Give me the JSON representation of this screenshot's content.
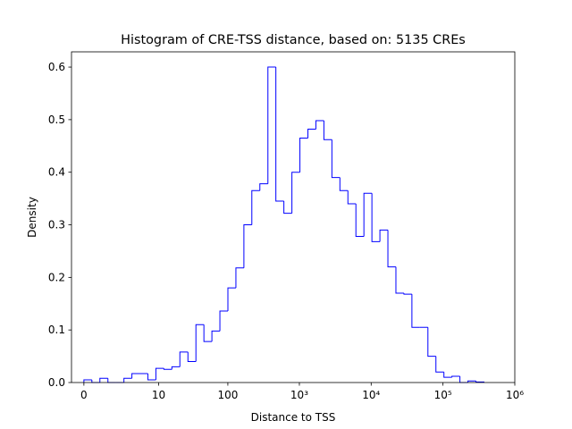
{
  "chart_data": {
    "type": "histogram",
    "title": "Histogram of CRE-TSS distance, based on: 5135 CREs",
    "x_label": "Distance to TSS",
    "y_label": "Density",
    "xscale": "symlog",
    "color": "#0000ff",
    "histtype": "step",
    "bins": [
      0,
      0.292,
      0.67,
      1.16,
      1.79,
      2.61,
      3.66,
      5.02,
      6.78,
      9.06,
      12.0,
      15.8,
      20.7,
      27.1,
      35.3,
      45.9,
      59.6,
      77.3,
      100.2,
      129.8,
      168,
      217,
      281,
      364,
      470,
      608,
      787,
      1017,
      1315,
      1699,
      2197,
      2839,
      3670,
      4743,
      6130,
      7924,
      10242,
      13237,
      17106,
      22108,
      28576,
      36930,
      47730,
      61690,
      79730,
      103040,
      133170,
      172110,
      222440,
      287470,
      371540
    ],
    "values": [
      0.005,
      0,
      0.008,
      0,
      0,
      0.008,
      0.017,
      0.017,
      0.005,
      0.027,
      0.025,
      0.03,
      0.058,
      0.04,
      0.11,
      0.078,
      0.098,
      0.136,
      0.18,
      0.218,
      0.3,
      0.365,
      0.378,
      0.6,
      0.345,
      0.322,
      0.4,
      0.465,
      0.482,
      0.498,
      0.462,
      0.39,
      0.365,
      0.34,
      0.278,
      0.36,
      0.268,
      0.29,
      0.22,
      0.17,
      0.168,
      0.105,
      0.105,
      0.05,
      0.02,
      0.01,
      0.012,
      0,
      0.003,
      0.001
    ],
    "xlim": [
      -0.488,
      1000000
    ],
    "xticks": [
      0,
      10,
      100,
      {
        "value": 1000,
        "label": "10³"
      },
      {
        "value": 10000,
        "label": "10⁴"
      },
      {
        "value": 100000,
        "label": "10⁵"
      },
      {
        "value": 1000000,
        "label": "10⁶"
      }
    ],
    "ylim": [
      0,
      0.629
    ],
    "yticks": [
      {
        "value": 0,
        "label": "0.0"
      },
      {
        "value": 0.1,
        "label": "0.1"
      },
      {
        "value": 0.2,
        "label": "0.2"
      },
      {
        "value": 0.3,
        "label": "0.3"
      },
      {
        "value": 0.4,
        "label": "0.4"
      },
      {
        "value": 0.5,
        "label": "0.5"
      },
      {
        "value": 0.6,
        "label": "0.6"
      }
    ]
  }
}
